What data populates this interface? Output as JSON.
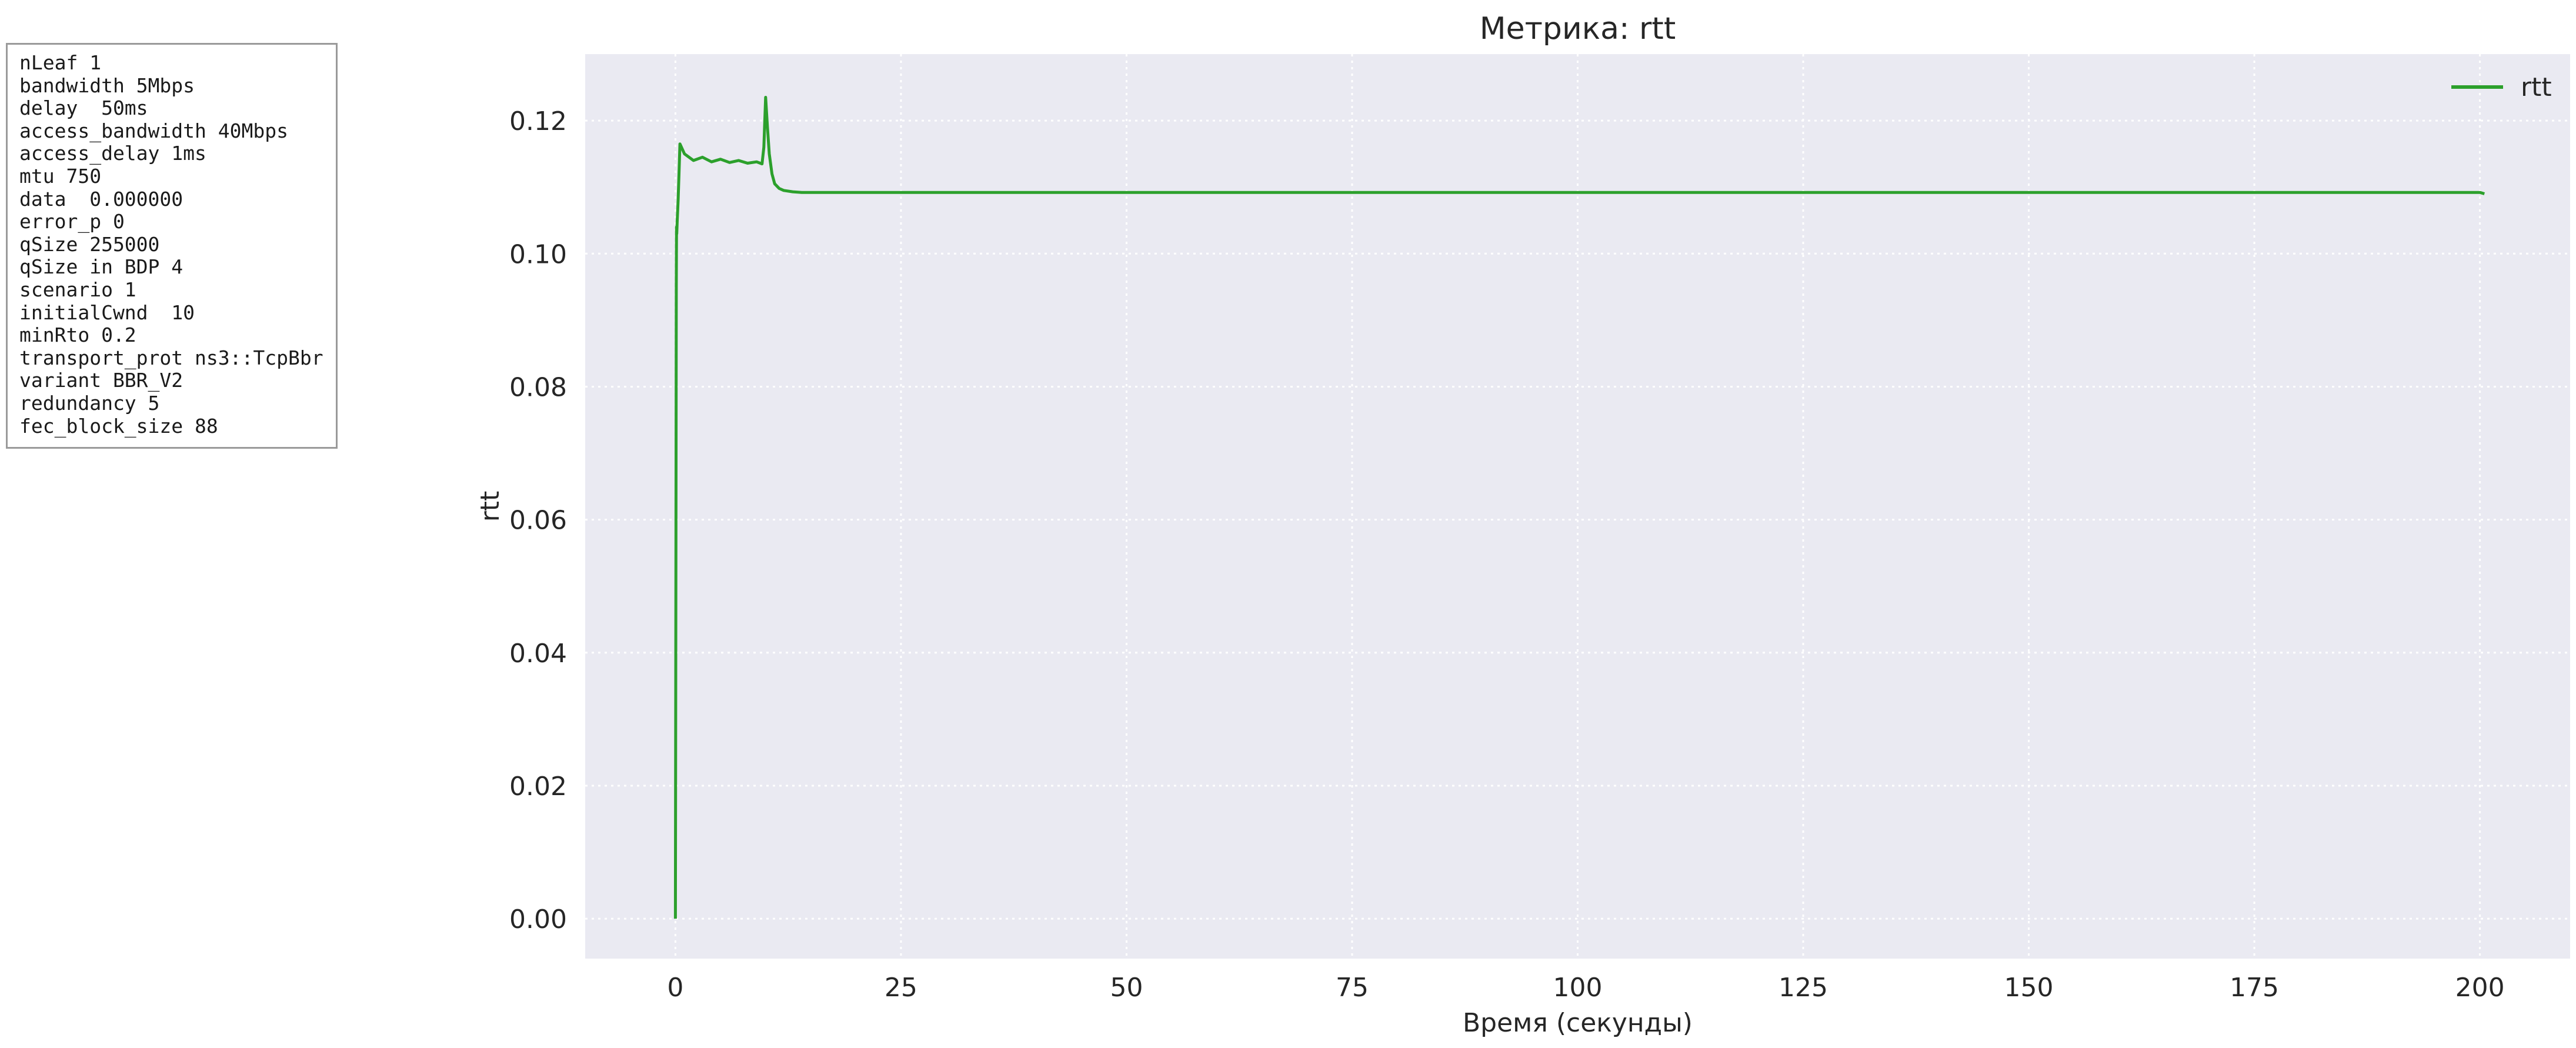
{
  "params": {
    "lines": [
      "nLeaf 1",
      "bandwidth 5Mbps",
      "delay  50ms",
      "access_bandwidth 40Mbps",
      "access_delay 1ms",
      "mtu 750",
      "data  0.000000",
      "error_p 0",
      "qSize 255000",
      "qSize in BDP 4",
      "scenario 1",
      "initialCwnd  10",
      "minRto 0.2",
      "transport_prot ns3::TcpBbr",
      "variant BBR_V2",
      "redundancy 5",
      "fec_block_size 88"
    ]
  },
  "chart_data": {
    "type": "line",
    "title": "Метрика: rtt",
    "xlabel": "Время (секунды)",
    "ylabel": "rtt",
    "xlim": [
      -10,
      210
    ],
    "ylim": [
      -0.006,
      0.13
    ],
    "xticks": [
      0,
      25,
      50,
      75,
      100,
      125,
      150,
      175,
      200
    ],
    "xtick_labels": [
      "0",
      "25",
      "50",
      "75",
      "100",
      "125",
      "150",
      "175",
      "200"
    ],
    "yticks": [
      0.0,
      0.02,
      0.04,
      0.06,
      0.08,
      0.1,
      0.12
    ],
    "ytick_labels": [
      "0.00",
      "0.02",
      "0.04",
      "0.06",
      "0.08",
      "0.10",
      "0.12"
    ],
    "grid": true,
    "legend": "top-right",
    "background": "#eaeaf2",
    "series": [
      {
        "name": "rtt",
        "color": "#2ca02c",
        "x": [
          0.0,
          0.05,
          0.1,
          0.12,
          0.15,
          0.2,
          0.3,
          0.4,
          0.5,
          1.0,
          2.0,
          3.0,
          4.0,
          5.0,
          6.0,
          7.0,
          8.0,
          9.0,
          9.6,
          9.8,
          10.0,
          10.2,
          10.4,
          10.7,
          11.0,
          11.5,
          12.0,
          13.0,
          14.0,
          15.0,
          20.0,
          30.0,
          40.0,
          50.0,
          60.0,
          70.0,
          80.0,
          90.0,
          100.0,
          110.0,
          120.0,
          130.0,
          140.0,
          150.0,
          160.0,
          170.0,
          180.0,
          190.0,
          200.0,
          200.5
        ],
        "y": [
          0.0,
          0.05,
          0.095,
          0.104,
          0.103,
          0.105,
          0.108,
          0.112,
          0.1165,
          0.115,
          0.114,
          0.1145,
          0.1138,
          0.1142,
          0.1137,
          0.114,
          0.1136,
          0.1138,
          0.1135,
          0.116,
          0.1235,
          0.119,
          0.115,
          0.112,
          0.1105,
          0.1098,
          0.1095,
          0.1093,
          0.1092,
          0.1092,
          0.1092,
          0.1092,
          0.1092,
          0.1092,
          0.1092,
          0.1092,
          0.1092,
          0.1092,
          0.1092,
          0.1092,
          0.1092,
          0.1092,
          0.1092,
          0.1092,
          0.1092,
          0.1092,
          0.1092,
          0.1092,
          0.1092,
          0.109
        ]
      }
    ]
  }
}
